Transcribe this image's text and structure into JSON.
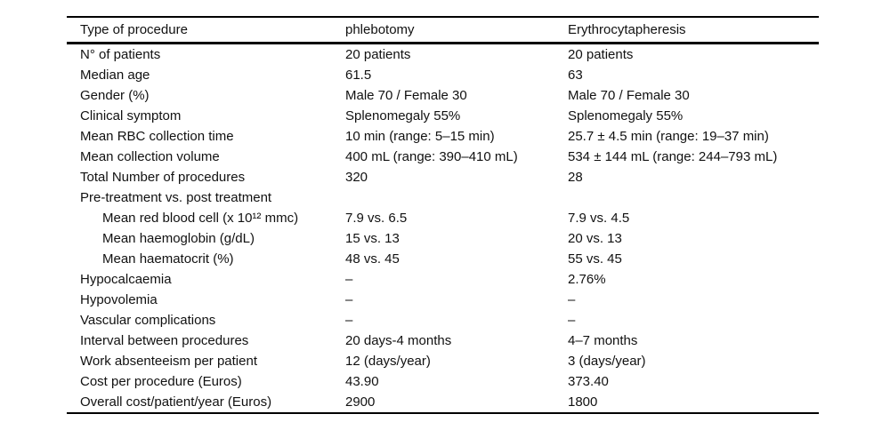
{
  "table": {
    "columns": [
      "Type of procedure",
      "phlebotomy",
      "Erythrocytapheresis"
    ],
    "rows": [
      {
        "label": "N° of patients",
        "phlebotomy": "20 patients",
        "erythrocytapheresis": "20 patients"
      },
      {
        "label": "Median age",
        "phlebotomy": "61.5",
        "erythrocytapheresis": "63"
      },
      {
        "label": "Gender (%)",
        "phlebotomy": "Male 70 / Female 30",
        "erythrocytapheresis": "Male 70 / Female 30"
      },
      {
        "label": "Clinical symptom",
        "phlebotomy": "Splenomegaly 55%",
        "erythrocytapheresis": "Splenomegaly 55%"
      },
      {
        "label": "Mean RBC collection time",
        "phlebotomy": "10 min (range: 5–15 min)",
        "erythrocytapheresis": "25.7 ± 4.5 min (range: 19–37 min)"
      },
      {
        "label": "Mean collection volume",
        "phlebotomy": "400 mL (range: 390–410 mL)",
        "erythrocytapheresis": "534 ± 144 mL (range: 244–793 mL)"
      },
      {
        "label": "Total Number of procedures",
        "phlebotomy": "320",
        "erythrocytapheresis": "28"
      },
      {
        "label": "Pre-treatment vs. post treatment",
        "phlebotomy": "",
        "erythrocytapheresis": ""
      },
      {
        "label": "Mean red blood cell (x 10¹² mmc)",
        "phlebotomy": "7.9 vs. 6.5",
        "erythrocytapheresis": "7.9 vs. 4.5"
      },
      {
        "label": "Mean haemoglobin (g/dL)",
        "phlebotomy": "15 vs. 13",
        "erythrocytapheresis": "20 vs. 13"
      },
      {
        "label": "Mean haematocrit (%)",
        "phlebotomy": "48 vs. 45",
        "erythrocytapheresis": "55 vs. 45"
      },
      {
        "label": "Hypocalcaemia",
        "phlebotomy": "–",
        "erythrocytapheresis": "2.76%"
      },
      {
        "label": "Hypovolemia",
        "phlebotomy": "–",
        "erythrocytapheresis": "–"
      },
      {
        "label": "Vascular complications",
        "phlebotomy": "–",
        "erythrocytapheresis": "–"
      },
      {
        "label": "Interval between procedures",
        "phlebotomy": "20 days-4 months",
        "erythrocytapheresis": "4–7 months"
      },
      {
        "label": "Work absenteeism per patient",
        "phlebotomy": "12 (days/year)",
        "erythrocytapheresis": "3 (days/year)"
      },
      {
        "label": "Cost per procedure (Euros)",
        "phlebotomy": "43.90",
        "erythrocytapheresis": "373.40"
      },
      {
        "label": "Overall cost/patient/year (Euros)",
        "phlebotomy": "2900",
        "erythrocytapheresis": "1800"
      }
    ]
  }
}
